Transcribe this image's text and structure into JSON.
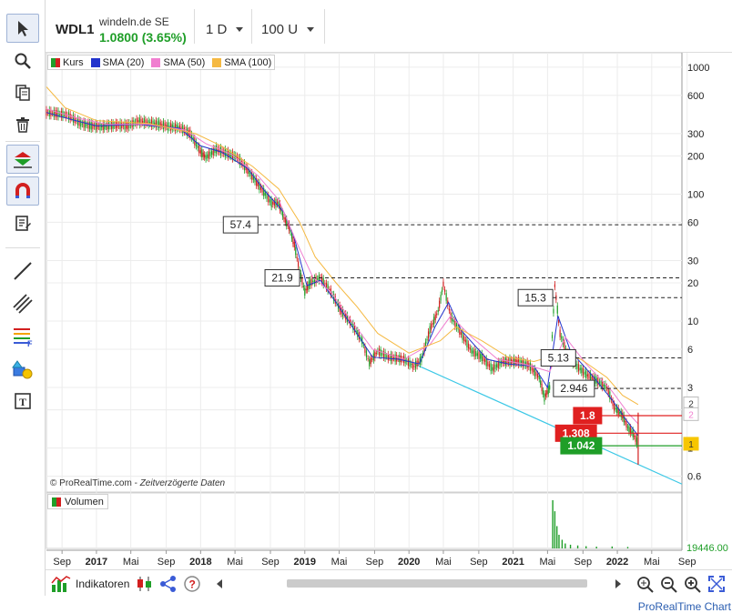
{
  "header": {
    "symbol": "WDL1",
    "name": "windeln.de SE",
    "price": "1.0800 (3.65%)",
    "timeframe": "1 D",
    "units": "100 U"
  },
  "legend": {
    "items": [
      {
        "label": "Kurs",
        "color": "multi"
      },
      {
        "label": "SMA (20)",
        "color": "#2233cc"
      },
      {
        "label": "SMA (50)",
        "color": "#f07fd0"
      },
      {
        "label": "SMA (100)",
        "color": "#f5b942"
      }
    ]
  },
  "volume_label": "Volumen",
  "watermark": {
    "brand": "© ProRealTime.com",
    "note": "Zeitverzögerte Daten"
  },
  "bottom_bar": {
    "indicators_label": "Indikatoren"
  },
  "footer": "ProRealTime Chart",
  "colors": {
    "up": "#1f9e28",
    "down": "#d21f1f",
    "sma20": "#2233cc",
    "sma50": "#f07fd0",
    "sma100": "#f5b942",
    "trendline": "#3cc8e6",
    "accent_green": "#1f9e28"
  },
  "chart_data": {
    "type": "line",
    "scale": "log",
    "ylim": [
      0.45,
      1300
    ],
    "y_ticks": [
      "1000",
      "600",
      "300",
      "200",
      "100",
      "60",
      "30",
      "20",
      "10",
      "6",
      "3",
      "2",
      "1",
      "0.6"
    ],
    "y_tick_values": [
      1000,
      600,
      300,
      200,
      100,
      60,
      30,
      20,
      10,
      6,
      3,
      2,
      1,
      0.6
    ],
    "x_labels": [
      "Sep",
      "2017",
      "Mai",
      "Sep",
      "2018",
      "Mai",
      "Sep",
      "2019",
      "Mai",
      "Sep",
      "2020",
      "Mai",
      "Sep",
      "2021",
      "Mai",
      "Sep",
      "2022",
      "Mai",
      "Sep"
    ],
    "x_label_dates": [
      2016.67,
      2017.0,
      2017.33,
      2017.67,
      2018.0,
      2018.33,
      2018.67,
      2019.0,
      2019.33,
      2019.67,
      2020.0,
      2020.33,
      2020.67,
      2021.0,
      2021.33,
      2021.67,
      2022.0,
      2022.33,
      2022.67
    ],
    "x_range": [
      2016.52,
      2022.62
    ],
    "last_bar_date": 2022.2,
    "series": [
      {
        "name": "Kurs",
        "points": [
          [
            2016.52,
            440
          ],
          [
            2016.62,
            430
          ],
          [
            2016.72,
            420
          ],
          [
            2016.85,
            360
          ],
          [
            2016.95,
            345
          ],
          [
            2017.05,
            340
          ],
          [
            2017.2,
            350
          ],
          [
            2017.3,
            345
          ],
          [
            2017.4,
            375
          ],
          [
            2017.5,
            365
          ],
          [
            2017.6,
            355
          ],
          [
            2017.7,
            340
          ],
          [
            2017.8,
            335
          ],
          [
            2017.9,
            300
          ],
          [
            2018.0,
            215
          ],
          [
            2018.05,
            195
          ],
          [
            2018.15,
            225
          ],
          [
            2018.25,
            210
          ],
          [
            2018.35,
            195
          ],
          [
            2018.45,
            155
          ],
          [
            2018.55,
            120
          ],
          [
            2018.62,
            100
          ],
          [
            2018.68,
            85
          ],
          [
            2018.75,
            85
          ],
          [
            2018.8,
            65
          ],
          [
            2018.85,
            55
          ],
          [
            2018.9,
            40
          ],
          [
            2018.95,
            25
          ],
          [
            2019.0,
            17
          ],
          [
            2019.05,
            20
          ],
          [
            2019.15,
            22
          ],
          [
            2019.25,
            17
          ],
          [
            2019.35,
            12
          ],
          [
            2019.45,
            9.5
          ],
          [
            2019.55,
            7
          ],
          [
            2019.62,
            4.7
          ],
          [
            2019.7,
            5.8
          ],
          [
            2019.8,
            5.2
          ],
          [
            2019.95,
            5.0
          ],
          [
            2020.05,
            4.4
          ],
          [
            2020.12,
            5.0
          ],
          [
            2020.2,
            8.5
          ],
          [
            2020.28,
            12
          ],
          [
            2020.33,
            19.5
          ],
          [
            2020.4,
            11
          ],
          [
            2020.5,
            8
          ],
          [
            2020.6,
            5.8
          ],
          [
            2020.7,
            5.2
          ],
          [
            2020.8,
            4.2
          ],
          [
            2020.9,
            4.8
          ],
          [
            2021.05,
            4.8
          ],
          [
            2021.15,
            4.5
          ],
          [
            2021.25,
            3.6
          ],
          [
            2021.3,
            2.5
          ],
          [
            2021.35,
            3.0
          ],
          [
            2021.4,
            19
          ],
          [
            2021.45,
            8
          ],
          [
            2021.52,
            5.5
          ],
          [
            2021.6,
            4.5
          ],
          [
            2021.7,
            3.8
          ],
          [
            2021.8,
            3.4
          ],
          [
            2021.9,
            3.0
          ],
          [
            2021.97,
            2.1
          ],
          [
            2022.05,
            1.8
          ],
          [
            2022.1,
            1.45
          ],
          [
            2022.15,
            1.3
          ],
          [
            2022.2,
            1.08
          ]
        ]
      },
      {
        "name": "SMA (20)",
        "points": [
          [
            2016.52,
            440
          ],
          [
            2016.8,
            380
          ],
          [
            2017.0,
            345
          ],
          [
            2017.4,
            355
          ],
          [
            2017.8,
            330
          ],
          [
            2018.0,
            240
          ],
          [
            2018.2,
            215
          ],
          [
            2018.45,
            160
          ],
          [
            2018.62,
            105
          ],
          [
            2018.8,
            72
          ],
          [
            2018.9,
            45
          ],
          [
            2019.02,
            19
          ],
          [
            2019.15,
            21
          ],
          [
            2019.3,
            14
          ],
          [
            2019.5,
            8
          ],
          [
            2019.65,
            5.2
          ],
          [
            2019.9,
            5.0
          ],
          [
            2020.1,
            4.6
          ],
          [
            2020.25,
            9
          ],
          [
            2020.38,
            14
          ],
          [
            2020.5,
            8.5
          ],
          [
            2020.75,
            5.0
          ],
          [
            2020.95,
            4.6
          ],
          [
            2021.2,
            4.4
          ],
          [
            2021.33,
            3.0
          ],
          [
            2021.43,
            11
          ],
          [
            2021.55,
            5.8
          ],
          [
            2021.75,
            3.8
          ],
          [
            2021.95,
            2.4
          ],
          [
            2022.1,
            1.6
          ],
          [
            2022.2,
            1.25
          ]
        ]
      },
      {
        "name": "SMA (50)",
        "points": [
          [
            2016.52,
            470
          ],
          [
            2016.8,
            400
          ],
          [
            2017.1,
            355
          ],
          [
            2017.5,
            355
          ],
          [
            2017.85,
            320
          ],
          [
            2018.05,
            250
          ],
          [
            2018.3,
            205
          ],
          [
            2018.55,
            140
          ],
          [
            2018.75,
            90
          ],
          [
            2018.92,
            42
          ],
          [
            2019.08,
            22
          ],
          [
            2019.25,
            17
          ],
          [
            2019.45,
            10
          ],
          [
            2019.65,
            6
          ],
          [
            2019.95,
            5.0
          ],
          [
            2020.2,
            6.5
          ],
          [
            2020.4,
            11
          ],
          [
            2020.6,
            7.5
          ],
          [
            2020.85,
            5.0
          ],
          [
            2021.1,
            4.6
          ],
          [
            2021.35,
            4.0
          ],
          [
            2021.5,
            7.5
          ],
          [
            2021.7,
            4.6
          ],
          [
            2021.95,
            2.8
          ],
          [
            2022.1,
            1.9
          ],
          [
            2022.2,
            1.55
          ]
        ]
      },
      {
        "name": "SMA (100)",
        "points": [
          [
            2016.52,
            700
          ],
          [
            2016.7,
            480
          ],
          [
            2017.0,
            380
          ],
          [
            2017.5,
            360
          ],
          [
            2017.95,
            300
          ],
          [
            2018.2,
            240
          ],
          [
            2018.5,
            165
          ],
          [
            2018.75,
            110
          ],
          [
            2018.95,
            60
          ],
          [
            2019.1,
            32
          ],
          [
            2019.3,
            20
          ],
          [
            2019.5,
            13
          ],
          [
            2019.7,
            8
          ],
          [
            2020.0,
            5.6
          ],
          [
            2020.3,
            7
          ],
          [
            2020.45,
            9
          ],
          [
            2020.7,
            7
          ],
          [
            2020.95,
            5.2
          ],
          [
            2021.2,
            4.8
          ],
          [
            2021.45,
            5.5
          ],
          [
            2021.65,
            5.0
          ],
          [
            2021.9,
            3.6
          ],
          [
            2022.05,
            2.6
          ],
          [
            2022.2,
            2.2
          ]
        ]
      }
    ],
    "trendline": {
      "from": [
        2020.05,
        4.6
      ],
      "to": [
        2022.62,
        0.52
      ]
    },
    "levels": [
      {
        "label": "57.4",
        "value": 57.4,
        "style": "dashed",
        "color": "#222",
        "start": 2018.55
      },
      {
        "label": "21.9",
        "value": 21.9,
        "style": "dashed",
        "color": "#222",
        "start": 2018.95
      },
      {
        "label": "15.3",
        "value": 15.3,
        "style": "dashed",
        "color": "#222",
        "start": 2021.38
      },
      {
        "label": "5.13",
        "value": 5.13,
        "style": "dashed",
        "color": "#222",
        "start": 2021.6
      },
      {
        "label": "2.946",
        "value": 2.946,
        "style": "dashed",
        "color": "#222",
        "start": 2021.78
      },
      {
        "label": "1.8",
        "value": 1.8,
        "style": "solid",
        "color": "#e02020",
        "start": 2021.85
      },
      {
        "label": "1.308",
        "value": 1.308,
        "style": "solid",
        "color": "#e02020",
        "start": 2021.8
      },
      {
        "label": "1.042",
        "value": 1.042,
        "style": "solid",
        "color": "#1f9e28",
        "start": 2021.85
      }
    ],
    "right_tags": [
      {
        "label": "2",
        "value": 2.25,
        "color": "#333",
        "bg": "#fff"
      },
      {
        "label": "2",
        "value": 1.85,
        "color": "#f07fd0",
        "bg": "#fff"
      },
      {
        "label": "1",
        "value": 1.08,
        "color": "#333",
        "bg": "#f7c600"
      }
    ],
    "volume": {
      "last_value": "19446.00",
      "bars": [
        [
          2021.38,
          19446
        ],
        [
          2021.4,
          15000
        ],
        [
          2021.42,
          9000
        ],
        [
          2021.44,
          5500
        ],
        [
          2021.47,
          3500
        ],
        [
          2021.5,
          2000
        ],
        [
          2021.55,
          1500
        ],
        [
          2021.62,
          1200
        ],
        [
          2021.7,
          900
        ],
        [
          2021.8,
          700
        ],
        [
          2021.95,
          800
        ],
        [
          2022.1,
          600
        ]
      ]
    }
  }
}
